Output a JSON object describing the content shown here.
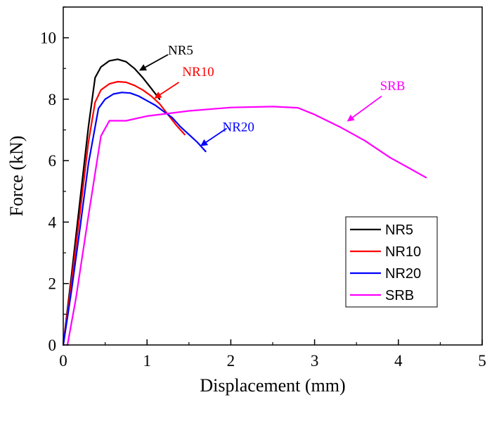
{
  "chart_data": {
    "type": "line",
    "title": "",
    "xlabel": "Displacement (mm)",
    "ylabel": "Force (kN)",
    "xlim": [
      0,
      5
    ],
    "ylim": [
      0,
      11
    ],
    "xticks": [
      0,
      1,
      2,
      3,
      4,
      5
    ],
    "xtick_labels": [
      "0",
      "1",
      "2",
      "3",
      "4",
      "5"
    ],
    "yticks": [
      0,
      2,
      4,
      6,
      8,
      10
    ],
    "ytick_labels": [
      "0",
      "2",
      "4",
      "6",
      "8",
      "10"
    ],
    "grid": false,
    "legend": "bottom-right",
    "series": [
      {
        "name": "NR5",
        "color": "#000000",
        "x": [
          0,
          0.1,
          0.2,
          0.3,
          0.38,
          0.45,
          0.55,
          0.65,
          0.75,
          0.85,
          0.95,
          1.05,
          1.15
        ],
        "y": [
          0,
          2.3,
          4.7,
          7.1,
          8.7,
          9.05,
          9.25,
          9.3,
          9.22,
          9.0,
          8.7,
          8.35,
          8.0
        ]
      },
      {
        "name": "NR10",
        "color": "#ff0000",
        "x": [
          0,
          0.1,
          0.2,
          0.3,
          0.38,
          0.45,
          0.55,
          0.65,
          0.75,
          0.85,
          0.95,
          1.05,
          1.15,
          1.25,
          1.35,
          1.45
        ],
        "y": [
          0,
          2.1,
          4.3,
          6.6,
          7.9,
          8.3,
          8.5,
          8.57,
          8.55,
          8.45,
          8.3,
          8.1,
          7.85,
          7.5,
          7.15,
          6.85
        ]
      },
      {
        "name": "NR20",
        "color": "#0000ff",
        "x": [
          0,
          0.1,
          0.2,
          0.3,
          0.42,
          0.5,
          0.6,
          0.7,
          0.8,
          0.9,
          1.0,
          1.1,
          1.2,
          1.3,
          1.4,
          1.5,
          1.6,
          1.7
        ],
        "y": [
          0,
          1.8,
          3.8,
          5.9,
          7.7,
          8.0,
          8.17,
          8.22,
          8.2,
          8.1,
          7.95,
          7.8,
          7.6,
          7.4,
          7.1,
          6.85,
          6.6,
          6.3
        ]
      },
      {
        "name": "SRB",
        "color": "#ff00ff",
        "x": [
          0.05,
          0.15,
          0.3,
          0.45,
          0.55,
          0.62,
          0.75,
          1.0,
          1.5,
          2.0,
          2.5,
          2.8,
          3.0,
          3.3,
          3.6,
          3.9,
          4.1,
          4.33
        ],
        "y": [
          0,
          1.5,
          4.2,
          6.8,
          7.3,
          7.3,
          7.3,
          7.45,
          7.62,
          7.73,
          7.76,
          7.72,
          7.5,
          7.1,
          6.65,
          6.1,
          5.8,
          5.45
        ]
      }
    ],
    "annotations": [
      {
        "text": "NR5",
        "color": "#000000",
        "label_x": 1.25,
        "label_y": 9.45,
        "arrow_from": [
          1.25,
          9.45
        ],
        "arrow_to": [
          0.92,
          8.95
        ]
      },
      {
        "text": "NR10",
        "color": "#ff0000",
        "label_x": 1.42,
        "label_y": 8.75,
        "arrow_from": [
          1.38,
          8.55
        ],
        "arrow_to": [
          1.1,
          8.05
        ]
      },
      {
        "text": "NR20",
        "color": "#0000ff",
        "label_x": 1.9,
        "label_y": 6.95,
        "arrow_from": [
          1.95,
          7.05
        ],
        "arrow_to": [
          1.65,
          6.5
        ]
      },
      {
        "text": "SRB",
        "color": "#ff00ff",
        "label_x": 3.78,
        "label_y": 8.3,
        "arrow_from": [
          3.8,
          8.1
        ],
        "arrow_to": [
          3.4,
          7.3
        ]
      }
    ]
  }
}
